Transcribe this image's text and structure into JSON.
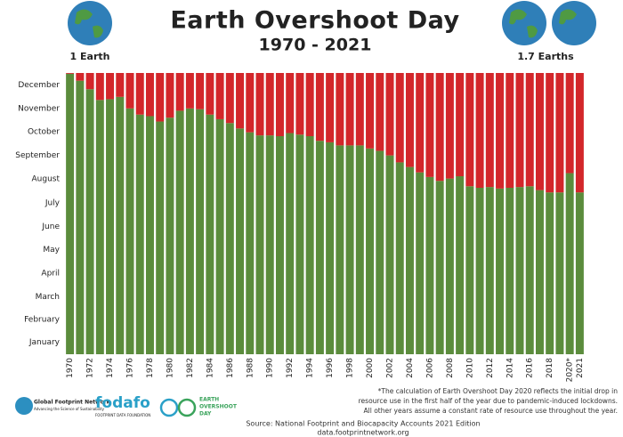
{
  "chart_data": {
    "type": "stacked_bar",
    "title": "Earth Overshoot Day",
    "subtitle": "1970 - 2021",
    "left_label": "1 Earth",
    "right_label": "1.7 Earths",
    "categories": [
      "1970",
      null,
      "1972",
      null,
      "1974",
      null,
      "1976",
      null,
      "1978",
      null,
      "1980",
      null,
      "1982",
      null,
      "1984",
      null,
      "1986",
      null,
      "1988",
      null,
      "1990",
      null,
      "1992",
      null,
      "1994",
      null,
      "1996",
      null,
      "1998",
      null,
      "2000",
      null,
      "2002",
      null,
      "2004",
      null,
      "2006",
      null,
      "2008",
      null,
      "2010",
      null,
      "2012",
      null,
      "2014",
      null,
      "2016",
      null,
      "2018",
      null,
      "2020*",
      "2021"
    ],
    "series": [
      {
        "color": "#5b8c3c",
        "values": [
          364,
          355,
          344,
          330,
          331,
          334,
          319,
          311,
          309,
          302,
          307,
          316,
          319,
          318,
          311,
          305,
          300,
          293,
          288,
          284,
          284,
          283,
          287,
          285,
          283,
          277,
          275,
          271,
          271,
          271,
          267,
          264,
          258,
          249,
          243,
          236,
          230,
          225,
          228,
          231,
          218,
          216,
          217,
          215,
          216,
          217,
          218,
          213,
          210,
          210,
          235,
          210
        ]
      },
      {
        "color": "#d3262a",
        "values": [
          1,
          10,
          21,
          35,
          34,
          31,
          46,
          54,
          56,
          63,
          58,
          49,
          46,
          47,
          54,
          60,
          65,
          72,
          77,
          81,
          81,
          82,
          78,
          80,
          82,
          88,
          90,
          94,
          94,
          94,
          98,
          101,
          107,
          116,
          122,
          129,
          135,
          140,
          137,
          134,
          147,
          149,
          148,
          150,
          149,
          148,
          147,
          152,
          155,
          155,
          130,
          155
        ]
      }
    ],
    "ylim": [
      0,
      365
    ],
    "yticks": [
      {
        "value": 15.5,
        "label": "January"
      },
      {
        "value": 45,
        "label": "February"
      },
      {
        "value": 74.5,
        "label": "March"
      },
      {
        "value": 105,
        "label": "April"
      },
      {
        "value": 135.5,
        "label": "May"
      },
      {
        "value": 166,
        "label": "June"
      },
      {
        "value": 196.5,
        "label": "July"
      },
      {
        "value": 227.5,
        "label": "August"
      },
      {
        "value": 258,
        "label": "September"
      },
      {
        "value": 288.5,
        "label": "October"
      },
      {
        "value": 319,
        "label": "November"
      },
      {
        "value": 349.5,
        "label": "December"
      }
    ],
    "footnote": [
      "*The calculation of Earth Overshoot Day 2020 reflects the initial drop in",
      "resource use in the first half of the year due to pandemic-induced lockdowns.",
      "All other years assume a constant rate of resource use throughout the year."
    ],
    "source": "Source: National Footprint and Biocapacity Accounts 2021 Edition",
    "url": "data.footprintnetwork.org",
    "logos": [
      "Global Footprint Network",
      "Advancing the Science of Sustainability",
      "fodafo",
      "FOOTPRINT DATA FOUNDATION",
      "EARTH",
      "OVERSHOOT",
      "DAY"
    ]
  }
}
